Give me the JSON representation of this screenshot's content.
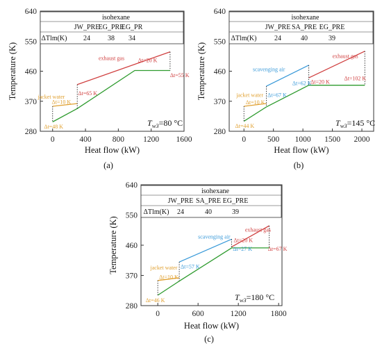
{
  "colors": {
    "jacket_water": "#e0a030",
    "scavenging_air": "#3a9ad9",
    "exhaust_gas": "#d04040",
    "working_fluid": "#2e9b2e",
    "axis": "#333333"
  },
  "chart_data": [
    {
      "type": "line",
      "panel": "(a)",
      "xlabel": "Heat flow (kW)",
      "ylabel": "Temperature (K)",
      "xlim": [
        -150,
        1600
      ],
      "ylim": [
        280,
        640
      ],
      "xticks": [
        "0",
        "400",
        "800",
        "1200",
        "1600"
      ],
      "yticks": [
        "280",
        "370",
        "460",
        "550",
        "640"
      ],
      "table": {
        "title": "isohexane",
        "row_label": "ΔTlm(K)",
        "headers": [
          "JW_PRE",
          "EG_PRE",
          "EG_PR"
        ],
        "values": [
          "24",
          "38",
          "34"
        ]
      },
      "condition_label": "T",
      "condition_sub": "w3",
      "condition_value": "=80 °C",
      "labels": {
        "jacket": "jacket water",
        "exhaust": "exhaust gas"
      },
      "series": [
        {
          "name": "jacket water",
          "x": [
            0,
            300
          ],
          "y": [
            355,
            363
          ]
        },
        {
          "name": "exhaust gas",
          "x": [
            300,
            1430
          ],
          "y": [
            420,
            518
          ]
        },
        {
          "name": "working fluid",
          "x": [
            0,
            300,
            1000,
            1430
          ],
          "y": [
            308,
            348,
            462,
            462
          ]
        }
      ],
      "pinch_annotations": [
        {
          "text": "Δt=48 K",
          "x": -105,
          "y": 288,
          "color": "jacket"
        },
        {
          "text": "Δt=10 K",
          "x": -10,
          "y": 362,
          "color": "jacket"
        },
        {
          "text": "Δt=65 K",
          "x": 310,
          "y": 388,
          "color": "exhaust"
        },
        {
          "text": "Δt=20 K",
          "x": 1040,
          "y": 487,
          "color": "exhaust"
        },
        {
          "text": "Δt=55 K",
          "x": 1430,
          "y": 442,
          "color": "exhaust"
        }
      ]
    },
    {
      "type": "line",
      "panel": "(b)",
      "xlabel": "Heat flow (kW)",
      "ylabel": "Temperature (K)",
      "xlim": [
        -250,
        2200
      ],
      "ylim": [
        280,
        640
      ],
      "xticks": [
        "0",
        "500",
        "1000",
        "1500",
        "2000"
      ],
      "yticks": [
        "280",
        "370",
        "460",
        "550",
        "640"
      ],
      "table": {
        "title": "isohexane",
        "row_label": "ΔTlm(K)",
        "headers": [
          "JW_PRE",
          "SA_PRE",
          "EG_PRE"
        ],
        "values": [
          "24",
          "40",
          "39"
        ]
      },
      "condition_label": "T",
      "condition_sub": "w3",
      "condition_value": "=145 °C",
      "labels": {
        "jacket": "jacket water",
        "scavenging": "scavenging air",
        "exhaust": "exhaust gas"
      },
      "series": [
        {
          "name": "jacket water",
          "x": [
            0,
            380
          ],
          "y": [
            355,
            363
          ]
        },
        {
          "name": "scavenging air",
          "x": [
            380,
            1100
          ],
          "y": [
            415,
            478
          ]
        },
        {
          "name": "exhaust gas",
          "x": [
            1100,
            2050
          ],
          "y": [
            440,
            520
          ]
        },
        {
          "name": "working fluid",
          "x": [
            0,
            380,
            1100,
            2050
          ],
          "y": [
            310,
            353,
            418,
            418
          ]
        }
      ],
      "pinch_annotations": [
        {
          "text": "Δt=44 K",
          "x": -150,
          "y": 290,
          "color": "jacket"
        },
        {
          "text": "Δt=10 K",
          "x": 30,
          "y": 361,
          "color": "jacket"
        },
        {
          "text": "Δt=67 K",
          "x": 400,
          "y": 383,
          "color": "scavenging"
        },
        {
          "text": "Δt=62 K",
          "x": 820,
          "y": 418,
          "color": "scavenging"
        },
        {
          "text": "Δt=20 K",
          "x": 1130,
          "y": 423,
          "color": "exhaust"
        },
        {
          "text": "Δt=102 K",
          "x": 1700,
          "y": 433,
          "color": "exhaust"
        }
      ]
    },
    {
      "type": "line",
      "panel": "(c)",
      "xlabel": "Heat flow (kW)",
      "ylabel": "Temperature (K)",
      "xlim": [
        -250,
        1850
      ],
      "ylim": [
        280,
        640
      ],
      "xticks": [
        "0",
        "600",
        "1200",
        "1800"
      ],
      "yticks": [
        "280",
        "370",
        "460",
        "550",
        "640"
      ],
      "table": {
        "title": "isohexane",
        "row_label": "ΔTlm(K)",
        "headers": [
          "JW_PRE",
          "SA_PRE",
          "EG_PRE"
        ],
        "values": [
          "24",
          "40",
          "39"
        ]
      },
      "condition_label": "T",
      "condition_sub": "w3",
      "condition_value": "=180 °C",
      "labels": {
        "jacket": "jacket water",
        "scavenging": "scavenging air",
        "exhaust": "exhaust gas"
      },
      "series": [
        {
          "name": "jacket water",
          "x": [
            0,
            320
          ],
          "y": [
            355,
            363
          ]
        },
        {
          "name": "scavenging air",
          "x": [
            320,
            1100
          ],
          "y": [
            410,
            478
          ]
        },
        {
          "name": "exhaust gas",
          "x": [
            1100,
            1660
          ],
          "y": [
            455,
            518
          ]
        },
        {
          "name": "working fluid",
          "x": [
            0,
            320,
            1100,
            1660
          ],
          "y": [
            311,
            353,
            452,
            452
          ]
        }
      ],
      "pinch_annotations": [
        {
          "text": "Δt=46 K",
          "x": -180,
          "y": 290,
          "color": "jacket"
        },
        {
          "text": "Δt=10 K",
          "x": 20,
          "y": 360,
          "color": "jacket"
        },
        {
          "text": "Δt=57 K",
          "x": 340,
          "y": 391,
          "color": "scavenging"
        },
        {
          "text": "Δt=20 K",
          "x": 1130,
          "y": 469,
          "color": "exhaust"
        },
        {
          "text": "Δt=27 K",
          "x": 1120,
          "y": 443,
          "color": "scavenging"
        },
        {
          "text": "Δt=67 K",
          "x": 1640,
          "y": 443,
          "color": "exhaust"
        }
      ]
    }
  ]
}
